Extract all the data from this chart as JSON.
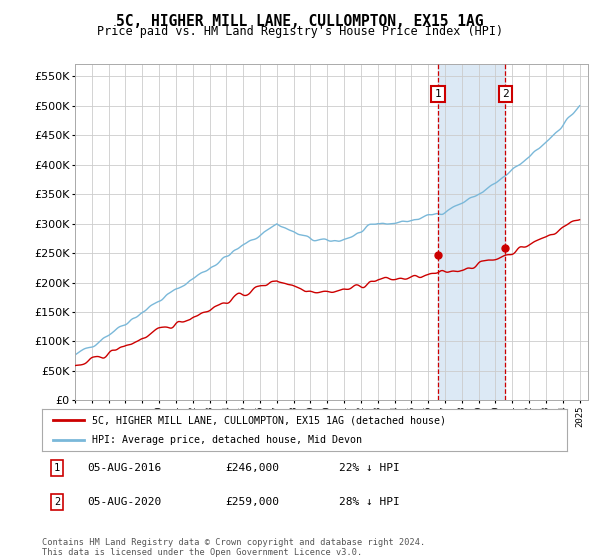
{
  "title": "5C, HIGHER MILL LANE, CULLOMPTON, EX15 1AG",
  "subtitle": "Price paid vs. HM Land Registry's House Price Index (HPI)",
  "ylabel_ticks": [
    "£0",
    "£50K",
    "£100K",
    "£150K",
    "£200K",
    "£250K",
    "£300K",
    "£350K",
    "£400K",
    "£450K",
    "£500K",
    "£550K"
  ],
  "ylim": [
    0,
    570000
  ],
  "yticks": [
    0,
    50000,
    100000,
    150000,
    200000,
    250000,
    300000,
    350000,
    400000,
    450000,
    500000,
    550000
  ],
  "x_start_year": 1995,
  "x_end_year": 2025,
  "hpi_color": "#7ab8d9",
  "price_color": "#cc0000",
  "marker1_year": 2016.58,
  "marker2_year": 2020.58,
  "marker1_price": 246000,
  "marker2_price": 259000,
  "marker1_date": "05-AUG-2016",
  "marker2_date": "05-AUG-2020",
  "marker1_pct": "22% ↓ HPI",
  "marker2_pct": "28% ↓ HPI",
  "legend_label_red": "5C, HIGHER MILL LANE, CULLOMPTON, EX15 1AG (detached house)",
  "legend_label_blue": "HPI: Average price, detached house, Mid Devon",
  "footnote": "Contains HM Land Registry data © Crown copyright and database right 2024.\nThis data is licensed under the Open Government Licence v3.0.",
  "background_color": "#ffffff",
  "grid_color": "#cccccc",
  "shaded_region_color": "#dce9f5"
}
